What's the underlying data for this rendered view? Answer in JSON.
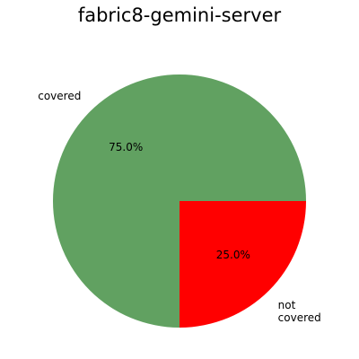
{
  "chart_data": {
    "type": "pie",
    "title": "fabric8-gemini-server",
    "slices": [
      {
        "label": "covered",
        "label_lines": [
          "covered"
        ],
        "value": 75.0,
        "pct_label": "75.0%",
        "color": "#61a161"
      },
      {
        "label": "not covered",
        "label_lines": [
          "not",
          "covered"
        ],
        "value": 25.0,
        "pct_label": "25.0%",
        "color": "#ff0000"
      }
    ],
    "start_angle_deg": 0,
    "direction": "counterclockwise"
  }
}
